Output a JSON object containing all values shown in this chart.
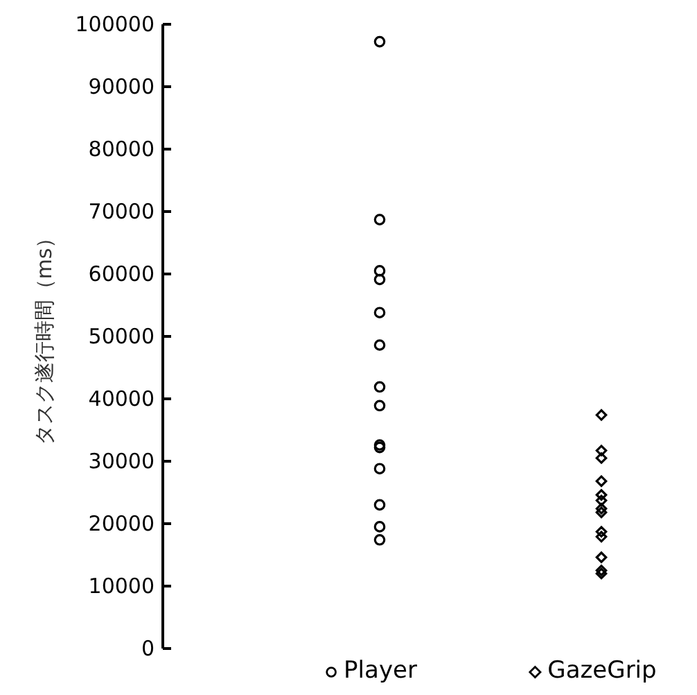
{
  "chart_data": {
    "type": "scatter",
    "ylabel": "タスク遂行時間（ms）",
    "categories": [
      "Player",
      "GazeGrip"
    ],
    "ylim": [
      0,
      100000
    ],
    "yticks": [
      0,
      10000,
      20000,
      30000,
      40000,
      50000,
      60000,
      70000,
      80000,
      90000,
      100000
    ],
    "grid": false,
    "series": [
      {
        "color": "#000000",
        "marker": "circle",
        "x": [
          "Player",
          "Player",
          "Player",
          "Player",
          "Player",
          "Player",
          "Player",
          "Player",
          "Player",
          "Player",
          "Player",
          "Player",
          "Player",
          "Player"
        ],
        "values": [
          97100,
          68600,
          60400,
          59000,
          53700,
          48500,
          41800,
          38800,
          32500,
          32100,
          28700,
          22900,
          19400,
          17300
        ]
      },
      {
        "color": "#000000",
        "marker": "diamond",
        "x": [
          "GazeGrip",
          "GazeGrip",
          "GazeGrip",
          "GazeGrip",
          "GazeGrip",
          "GazeGrip",
          "GazeGrip",
          "GazeGrip",
          "GazeGrip",
          "GazeGrip",
          "GazeGrip",
          "GazeGrip",
          "GazeGrip"
        ],
        "values": [
          37300,
          31600,
          30400,
          26700,
          24500,
          23600,
          22300,
          21700,
          18600,
          17800,
          14500,
          12400,
          11900
        ]
      }
    ]
  }
}
